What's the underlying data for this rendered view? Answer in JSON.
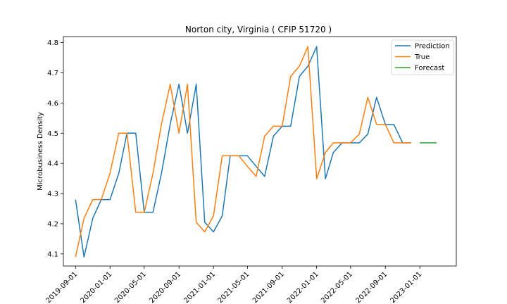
{
  "chart_data": {
    "type": "line",
    "title": "Norton city, Virginia ( CFIP 51720 )",
    "xlabel": "",
    "ylabel": "Microbusiness Density",
    "xlim": [
      "2019-07-20",
      "2023-05-10"
    ],
    "ylim": [
      4.06,
      4.82
    ],
    "x_ticks": [
      "2019-09-01",
      "2020-01-01",
      "2020-05-01",
      "2020-09-01",
      "2021-01-01",
      "2021-05-01",
      "2021-09-01",
      "2022-01-01",
      "2022-05-01",
      "2022-09-01",
      "2023-01-01"
    ],
    "y_ticks": [
      4.1,
      4.2,
      4.3,
      4.4,
      4.5,
      4.6,
      4.7,
      4.8
    ],
    "y_tick_labels": [
      "4.1",
      "4.2",
      "4.3",
      "4.4",
      "4.5",
      "4.6",
      "4.7",
      "4.8"
    ],
    "legend_position": "upper-right",
    "series": [
      {
        "name": "Prediction",
        "color": "#1f77b4",
        "points": [
          [
            "2019-09-01",
            4.28
          ],
          [
            "2019-10-01",
            4.09
          ],
          [
            "2019-11-01",
            4.218
          ],
          [
            "2019-12-01",
            4.28
          ],
          [
            "2020-01-01",
            4.28
          ],
          [
            "2020-02-01",
            4.367
          ],
          [
            "2020-03-01",
            4.5
          ],
          [
            "2020-04-01",
            4.5
          ],
          [
            "2020-05-01",
            4.238
          ],
          [
            "2020-06-01",
            4.238
          ],
          [
            "2020-07-01",
            4.367
          ],
          [
            "2020-08-01",
            4.53
          ],
          [
            "2020-09-01",
            4.662
          ],
          [
            "2020-10-01",
            4.5
          ],
          [
            "2020-11-01",
            4.662
          ],
          [
            "2020-12-01",
            4.205
          ],
          [
            "2021-01-01",
            4.173
          ],
          [
            "2021-02-01",
            4.226
          ],
          [
            "2021-03-01",
            4.425
          ],
          [
            "2021-04-01",
            4.425
          ],
          [
            "2021-05-01",
            4.425
          ],
          [
            "2021-06-01",
            4.39
          ],
          [
            "2021-07-01",
            4.357
          ],
          [
            "2021-08-01",
            4.49
          ],
          [
            "2021-09-01",
            4.523
          ],
          [
            "2021-10-01",
            4.523
          ],
          [
            "2021-11-01",
            4.688
          ],
          [
            "2021-12-01",
            4.722
          ],
          [
            "2022-01-01",
            4.787
          ],
          [
            "2022-02-01",
            4.349
          ],
          [
            "2022-03-01",
            4.436
          ],
          [
            "2022-04-01",
            4.468
          ],
          [
            "2022-05-01",
            4.468
          ],
          [
            "2022-06-01",
            4.468
          ],
          [
            "2022-07-01",
            4.497
          ],
          [
            "2022-08-01",
            4.619
          ],
          [
            "2022-09-01",
            4.529
          ],
          [
            "2022-10-01",
            4.529
          ],
          [
            "2022-11-01",
            4.468
          ],
          [
            "2022-12-01",
            4.468
          ]
        ]
      },
      {
        "name": "True",
        "color": "#ff7f0e",
        "points": [
          [
            "2019-09-01",
            4.09
          ],
          [
            "2019-10-01",
            4.218
          ],
          [
            "2019-11-01",
            4.28
          ],
          [
            "2019-12-01",
            4.28
          ],
          [
            "2020-01-01",
            4.367
          ],
          [
            "2020-02-01",
            4.5
          ],
          [
            "2020-03-01",
            4.5
          ],
          [
            "2020-04-01",
            4.238
          ],
          [
            "2020-05-01",
            4.238
          ],
          [
            "2020-06-01",
            4.367
          ],
          [
            "2020-07-01",
            4.53
          ],
          [
            "2020-08-01",
            4.662
          ],
          [
            "2020-09-01",
            4.5
          ],
          [
            "2020-10-01",
            4.662
          ],
          [
            "2020-11-01",
            4.205
          ],
          [
            "2020-12-01",
            4.173
          ],
          [
            "2021-01-01",
            4.226
          ],
          [
            "2021-02-01",
            4.425
          ],
          [
            "2021-03-01",
            4.425
          ],
          [
            "2021-04-01",
            4.425
          ],
          [
            "2021-05-01",
            4.39
          ],
          [
            "2021-06-01",
            4.357
          ],
          [
            "2021-07-01",
            4.49
          ],
          [
            "2021-08-01",
            4.523
          ],
          [
            "2021-09-01",
            4.523
          ],
          [
            "2021-10-01",
            4.688
          ],
          [
            "2021-11-01",
            4.722
          ],
          [
            "2021-12-01",
            4.787
          ],
          [
            "2022-01-01",
            4.349
          ],
          [
            "2022-02-01",
            4.436
          ],
          [
            "2022-03-01",
            4.468
          ],
          [
            "2022-04-01",
            4.468
          ],
          [
            "2022-05-01",
            4.468
          ],
          [
            "2022-06-01",
            4.497
          ],
          [
            "2022-07-01",
            4.619
          ],
          [
            "2022-08-01",
            4.529
          ],
          [
            "2022-09-01",
            4.529
          ],
          [
            "2022-10-01",
            4.468
          ],
          [
            "2022-11-01",
            4.468
          ],
          [
            "2022-12-01",
            4.468
          ]
        ]
      },
      {
        "name": "Forecast",
        "color": "#2ca02c",
        "points": [
          [
            "2023-01-01",
            4.468
          ],
          [
            "2023-02-01",
            4.468
          ],
          [
            "2023-03-01",
            4.468
          ]
        ]
      }
    ]
  }
}
